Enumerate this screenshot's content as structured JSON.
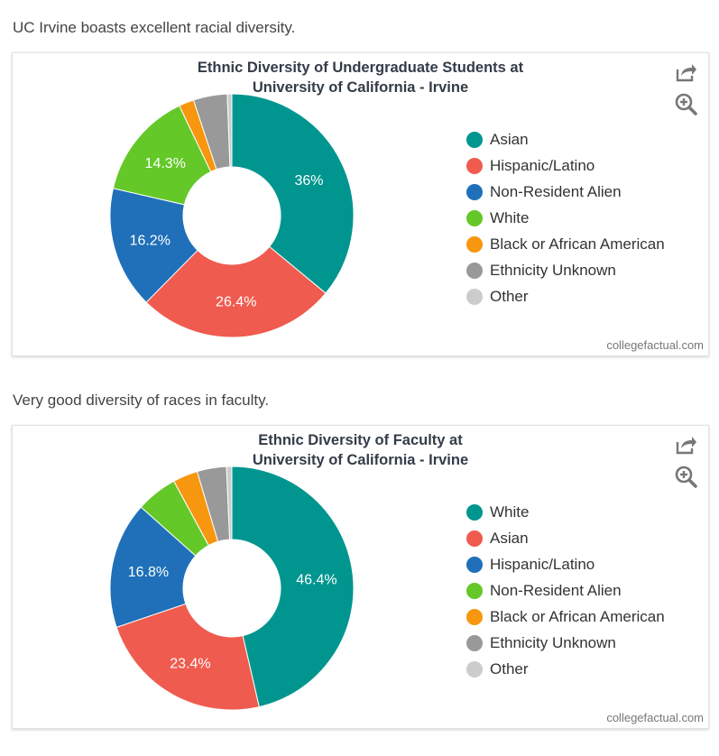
{
  "sections": [
    {
      "intro": "UC Irvine boasts excellent racial diversity.",
      "title_line1": "Ethnic Diversity of Undergraduate Students at",
      "title_line2": "University of California - Irvine",
      "credit": "collegefactual.com"
    },
    {
      "intro": "Very good diversity of races in faculty.",
      "title_line1": "Ethnic Diversity of Faculty at",
      "title_line2": "University of California - Irvine",
      "credit": "collegefactual.com"
    }
  ],
  "icons": {
    "share": "share-icon",
    "zoom": "zoom-in-icon"
  },
  "chart_data": [
    {
      "type": "pie",
      "donut": true,
      "title": "Ethnic Diversity of Undergraduate Students at University of California - Irvine",
      "categories": [
        "Asian",
        "Hispanic/Latino",
        "Non-Resident Alien",
        "White",
        "Black or African American",
        "Ethnicity Unknown",
        "Other"
      ],
      "values": [
        36.0,
        26.4,
        16.2,
        14.3,
        2.0,
        4.5,
        0.6
      ],
      "labels": [
        "36%",
        "26.4%",
        "16.2%",
        "14.3%",
        "",
        "",
        ""
      ],
      "colors": [
        "#00968f",
        "#f05b4f",
        "#1f70b9",
        "#64c828",
        "#f7960f",
        "#999999",
        "#cccccc"
      ],
      "legend_position": "right"
    },
    {
      "type": "pie",
      "donut": true,
      "title": "Ethnic Diversity of Faculty at University of California - Irvine",
      "categories": [
        "White",
        "Asian",
        "Hispanic/Latino",
        "Non-Resident Alien",
        "Black or African American",
        "Ethnicity Unknown",
        "Other"
      ],
      "values": [
        46.4,
        23.4,
        16.8,
        5.5,
        3.3,
        3.9,
        0.7
      ],
      "labels": [
        "46.4%",
        "23.4%",
        "16.8%",
        "",
        "",
        "",
        ""
      ],
      "colors": [
        "#00968f",
        "#f05b4f",
        "#1f70b9",
        "#64c828",
        "#f7960f",
        "#999999",
        "#cccccc"
      ],
      "legend_position": "right"
    }
  ]
}
